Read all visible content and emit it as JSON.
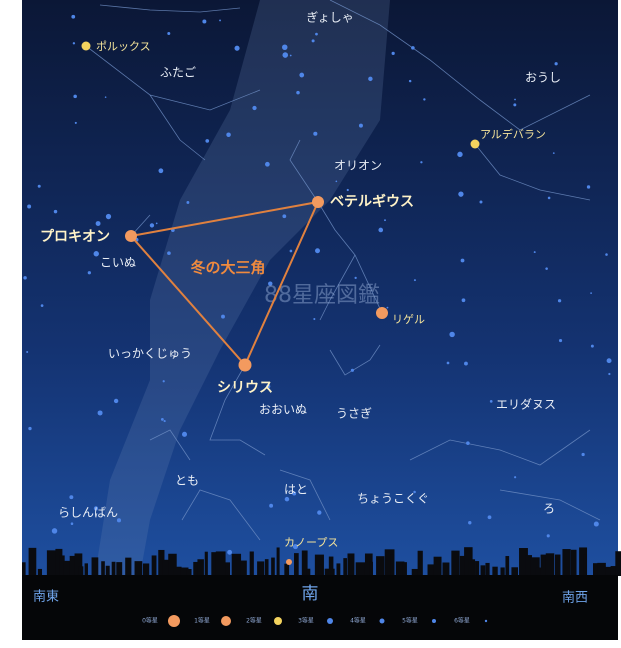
{
  "constellations": [
    "ぎょしゃ",
    "ふたご",
    "おうし",
    "オリオン",
    "こいぬ",
    "いっかくじゅう",
    "おおいぬ",
    "うさぎ",
    "エリダヌス",
    "とも",
    "はと",
    "ちょうこくぐ",
    "ろ",
    "らしんばん"
  ],
  "stars": [
    "ポルックス",
    "アルデバラン",
    "ベテルギウス",
    "プロキオン",
    "シリウス",
    "リゲル",
    "カノープス"
  ],
  "asterism": "冬の大三角",
  "watermark": "88星座図鑑",
  "directions": [
    "南東",
    "南",
    "南西"
  ],
  "legend": [
    "0等星",
    "1等星",
    "2等星",
    "3等星",
    "4等星",
    "5等星",
    "6等星"
  ]
}
